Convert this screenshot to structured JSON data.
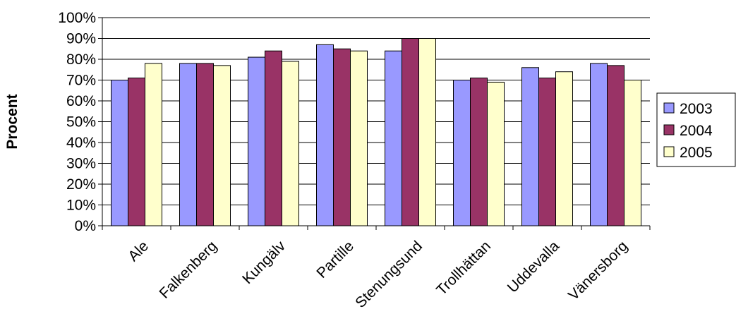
{
  "chart_data": {
    "type": "bar",
    "title": "",
    "xlabel": "",
    "ylabel": "Procent",
    "ylim": [
      0,
      100
    ],
    "yticks": [
      "0%",
      "10%",
      "20%",
      "30%",
      "40%",
      "50%",
      "60%",
      "70%",
      "80%",
      "90%",
      "100%"
    ],
    "grid": true,
    "legend_position": "right",
    "categories": [
      "Ale",
      "Falkenberg",
      "Kungälv",
      "Partille",
      "Stenungsund",
      "Trollhättan",
      "Uddevalla",
      "Vänersborg"
    ],
    "series": [
      {
        "name": "2003",
        "color": "#9999ff",
        "values": [
          70,
          78,
          81,
          87,
          84,
          70,
          76,
          78
        ]
      },
      {
        "name": "2004",
        "color": "#993366",
        "values": [
          71,
          78,
          84,
          85,
          90,
          71,
          71,
          77
        ]
      },
      {
        "name": "2005",
        "color": "#ffffcc",
        "values": [
          78,
          77,
          79,
          84,
          90,
          69,
          74,
          70
        ]
      }
    ]
  }
}
